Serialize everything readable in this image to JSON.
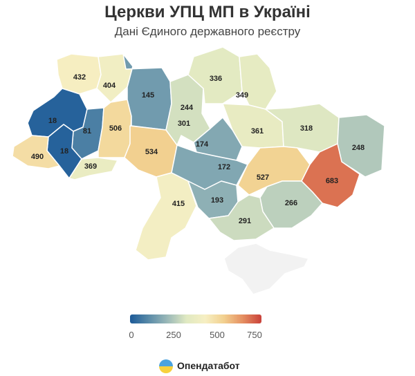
{
  "title": "Церкви УПЦ МП в Україні",
  "subtitle": "Дані Єдиного державного реєстру",
  "brand": "Опендатабот",
  "legend": {
    "min": 0,
    "max": 750,
    "ticks": [
      "0",
      "250",
      "500",
      "750"
    ],
    "stops": [
      "#1c5a98",
      "#5a8ba8",
      "#9bb9b8",
      "#e0e9c2",
      "#f6efc3",
      "#f2d08f",
      "#e58f61",
      "#c9413a"
    ]
  },
  "colors": {
    "no_data": "#f2f2f2"
  },
  "chart_data": {
    "type": "choropleth",
    "values": [
      {
        "region": "Volyn",
        "value": 432
      },
      {
        "region": "Rivne",
        "value": 404
      },
      {
        "region": "Lviv",
        "value": 18
      },
      {
        "region": "Ternopil",
        "value": 81
      },
      {
        "region": "Ivano-Frankivsk",
        "value": 18
      },
      {
        "region": "Zakarpattia",
        "value": 490
      },
      {
        "region": "Chernivtsi",
        "value": 369
      },
      {
        "region": "Khmelnytskyi",
        "value": 506
      },
      {
        "region": "Zhytomyr",
        "value": 145
      },
      {
        "region": "Vinnytsia",
        "value": 534
      },
      {
        "region": "Kyiv city",
        "value": 244
      },
      {
        "region": "Kyiv",
        "value": 301
      },
      {
        "region": "Chernihiv",
        "value": 336
      },
      {
        "region": "Sumy",
        "value": 349
      },
      {
        "region": "Poltava",
        "value": 361
      },
      {
        "region": "Kharkiv",
        "value": 318
      },
      {
        "region": "Luhansk",
        "value": 248
      },
      {
        "region": "Cherkasy",
        "value": 174
      },
      {
        "region": "Kirovohrad",
        "value": 172
      },
      {
        "region": "Dnipropetrovsk",
        "value": 527
      },
      {
        "region": "Donetsk",
        "value": 683
      },
      {
        "region": "Odesa",
        "value": 415
      },
      {
        "region": "Mykolaiv",
        "value": 193
      },
      {
        "region": "Zaporizhzhia",
        "value": 266
      },
      {
        "region": "Kherson",
        "value": 291
      },
      {
        "region": "Crimea",
        "value": null
      }
    ]
  }
}
